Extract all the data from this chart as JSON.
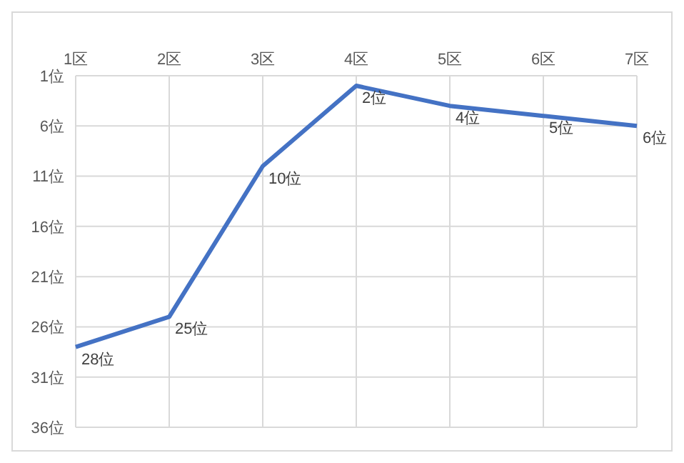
{
  "chart_data": {
    "type": "line",
    "categories": [
      "1区",
      "2区",
      "3区",
      "4区",
      "5区",
      "6区",
      "7区"
    ],
    "series": [
      {
        "color": "#4472c4",
        "values": [
          28,
          25,
          10,
          2,
          4,
          5,
          6
        ],
        "value_labels": [
          "28位",
          "25位",
          "10位",
          "2位",
          "4位",
          "5位",
          "6位"
        ]
      }
    ],
    "ylim": [
      36,
      1
    ],
    "yticks": [
      {
        "value": 1,
        "label": "1位"
      },
      {
        "value": 6,
        "label": "6位"
      },
      {
        "value": 11,
        "label": "11位"
      },
      {
        "value": 16,
        "label": "16位"
      },
      {
        "value": 21,
        "label": "21位"
      },
      {
        "value": 26,
        "label": "26位"
      },
      {
        "value": 31,
        "label": "31位"
      },
      {
        "value": 36,
        "label": "36位"
      }
    ],
    "grid": true,
    "legend": false,
    "marker": "none",
    "line_style": "solid"
  }
}
